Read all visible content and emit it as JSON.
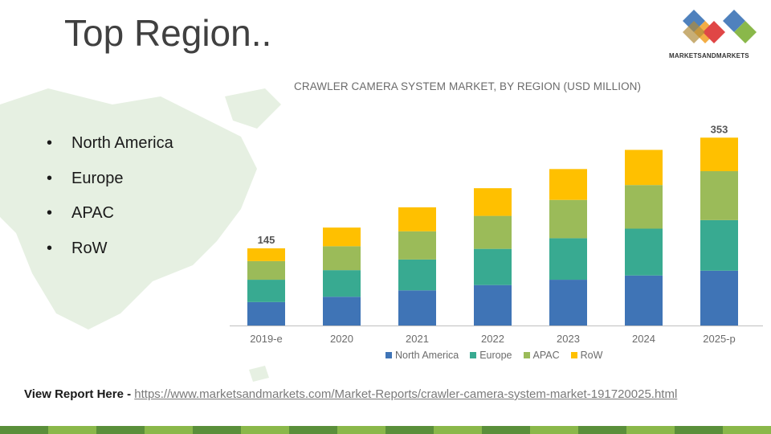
{
  "slide": {
    "title": "Top Region..",
    "bullets": [
      "North America",
      "Europe",
      "APAC",
      "RoW"
    ],
    "footer_label": "View Report Here - ",
    "footer_url": "https://www.marketsandmarkets.com/Market-Reports/crawler-camera-system-market-191720025.html"
  },
  "logo": {
    "text": "MARKETSANDMARKETS",
    "colors": [
      "#4f81bd",
      "#e04646",
      "#8ab84a",
      "#f2a93b"
    ]
  },
  "chart_data": {
    "type": "bar",
    "stacked": true,
    "title": "CRAWLER CAMERA SYSTEM MARKET, BY REGION (USD MILLION)",
    "categories": [
      "2019-e",
      "2020",
      "2021",
      "2022",
      "2023",
      "2024",
      "2025-p"
    ],
    "series": [
      {
        "name": "North America",
        "color": "#3f74b6",
        "values": [
          44,
          54,
          66,
          76,
          86,
          94,
          103
        ]
      },
      {
        "name": "Europe",
        "color": "#38aa91",
        "values": [
          42,
          50,
          58,
          68,
          78,
          88,
          95
        ]
      },
      {
        "name": "APAC",
        "color": "#9bbb59",
        "values": [
          35,
          45,
          53,
          62,
          72,
          82,
          92
        ]
      },
      {
        "name": "RoW",
        "color": "#ffc000",
        "values": [
          24,
          35,
          45,
          52,
          58,
          66,
          63
        ]
      }
    ],
    "totals_labels": {
      "2019-e": "145",
      "2025-p": "353"
    },
    "ylim": [
      0,
      370
    ],
    "legend_position": "bottom",
    "grid": false
  },
  "colors": {
    "map": "#e4efe0",
    "footer_strip": [
      "#5a8f3a",
      "#8ab84a"
    ]
  }
}
